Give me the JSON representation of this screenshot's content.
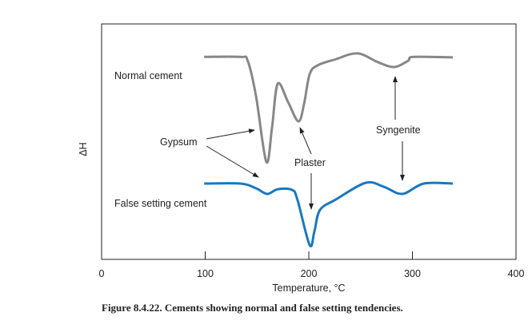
{
  "chart_data": {
    "type": "line",
    "caption": "Figure 8.4.22. Cements showing normal and false setting tendencies.",
    "xlabel": "Temperature, °C",
    "ylabel": "ΔH",
    "xlim": [
      0,
      400
    ],
    "ylim": [
      0,
      100
    ],
    "xticks": [
      0,
      100,
      200,
      300,
      400
    ],
    "grid": false,
    "series": [
      {
        "name": "Normal cement",
        "color": "#878787",
        "points": [
          [
            99,
            86
          ],
          [
            134,
            86
          ],
          [
            141,
            84.4
          ],
          [
            149,
            69.5
          ],
          [
            159,
            41.4
          ],
          [
            164.5,
            56
          ],
          [
            170,
            74.6
          ],
          [
            180,
            66.8
          ],
          [
            190,
            58.6
          ],
          [
            195.4,
            66
          ],
          [
            200.8,
            78.6
          ],
          [
            208.5,
            82.4
          ],
          [
            226,
            85
          ],
          [
            247,
            87.5
          ],
          [
            267,
            83.7
          ],
          [
            282.6,
            81.7
          ],
          [
            296,
            84.4
          ],
          [
            301,
            86
          ],
          [
            339,
            85.8
          ]
        ]
      },
      {
        "name": "False setting cement",
        "color": "#1a78c2",
        "points": [
          [
            99,
            32.2
          ],
          [
            134,
            32.2
          ],
          [
            149,
            30.2
          ],
          [
            159.8,
            27.8
          ],
          [
            170,
            29.8
          ],
          [
            183.8,
            29.5
          ],
          [
            189,
            25.4
          ],
          [
            200.8,
            6.1
          ],
          [
            205.4,
            11.9
          ],
          [
            210.8,
            21
          ],
          [
            226,
            25.4
          ],
          [
            254.8,
            32.5
          ],
          [
            272.6,
            30.8
          ],
          [
            290.3,
            27.8
          ],
          [
            311,
            32.2
          ],
          [
            339,
            32.2
          ]
        ]
      }
    ],
    "annotations": [
      "Gypsum",
      "Plaster",
      "Syngenite"
    ]
  }
}
